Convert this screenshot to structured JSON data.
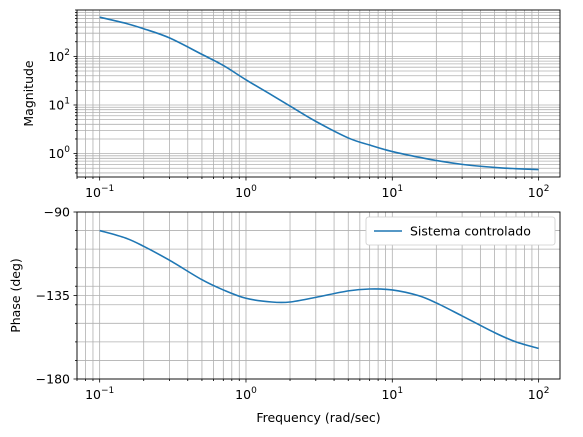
{
  "chart_data": [
    {
      "type": "line",
      "panel": "magnitude",
      "xscale": "log",
      "yscale": "log",
      "xlim": [
        0.07,
        140
      ],
      "ylim": [
        0.33,
        900
      ],
      "x_ticks": [
        {
          "value": 0.1,
          "base": "10",
          "exp": "−1"
        },
        {
          "value": 1,
          "base": "10",
          "exp": "0"
        },
        {
          "value": 10,
          "base": "10",
          "exp": "1"
        },
        {
          "value": 100,
          "base": "10",
          "exp": "2"
        }
      ],
      "y_ticks": [
        {
          "value": 1,
          "base": "10",
          "exp": "0"
        },
        {
          "value": 10,
          "base": "10",
          "exp": "1"
        },
        {
          "value": 100,
          "base": "10",
          "exp": "2"
        }
      ],
      "ylabel": "Magnitude",
      "grid": "major and minor",
      "series": [
        {
          "color": "#1f77b4",
          "x": [
            0.1,
            0.15,
            0.2,
            0.3,
            0.5,
            0.7,
            1,
            1.5,
            2,
            3,
            5,
            7,
            10,
            15,
            20,
            30,
            50,
            70,
            100
          ],
          "y": [
            640,
            480,
            370,
            240,
            110,
            65,
            33,
            16,
            9.5,
            4.6,
            2.1,
            1.5,
            1.1,
            0.85,
            0.72,
            0.6,
            0.52,
            0.49,
            0.47
          ]
        }
      ]
    },
    {
      "type": "line",
      "panel": "phase",
      "xscale": "log",
      "xlim": [
        0.07,
        140
      ],
      "ylim": [
        -180,
        -90
      ],
      "x_ticks": [
        {
          "value": 0.1,
          "base": "10",
          "exp": "−1"
        },
        {
          "value": 1,
          "base": "10",
          "exp": "0"
        },
        {
          "value": 10,
          "base": "10",
          "exp": "1"
        },
        {
          "value": 100,
          "base": "10",
          "exp": "2"
        }
      ],
      "y_ticks": [
        {
          "value": -90,
          "label": "−90"
        },
        {
          "value": -135,
          "label": "−135"
        },
        {
          "value": -180,
          "label": "−180"
        }
      ],
      "y_minor_ticks": [
        -100,
        -110,
        -120,
        -130,
        -140,
        -150,
        -160,
        -170
      ],
      "xlabel": "Frequency (rad/sec)",
      "ylabel": "Phase (deg)",
      "grid": "major and minor",
      "legend_position": "top-right",
      "series": [
        {
          "name": "Sistema controlado",
          "color": "#1f77b4",
          "x": [
            0.1,
            0.15,
            0.2,
            0.3,
            0.5,
            0.7,
            1,
            1.5,
            2,
            3,
            5,
            7,
            10,
            15,
            20,
            30,
            50,
            70,
            100
          ],
          "y": [
            -100,
            -104,
            -108.5,
            -116,
            -126.5,
            -132,
            -136.5,
            -138.5,
            -138.5,
            -136,
            -132.5,
            -131.5,
            -132,
            -135,
            -139,
            -146,
            -155,
            -160,
            -163.5
          ]
        }
      ]
    }
  ]
}
